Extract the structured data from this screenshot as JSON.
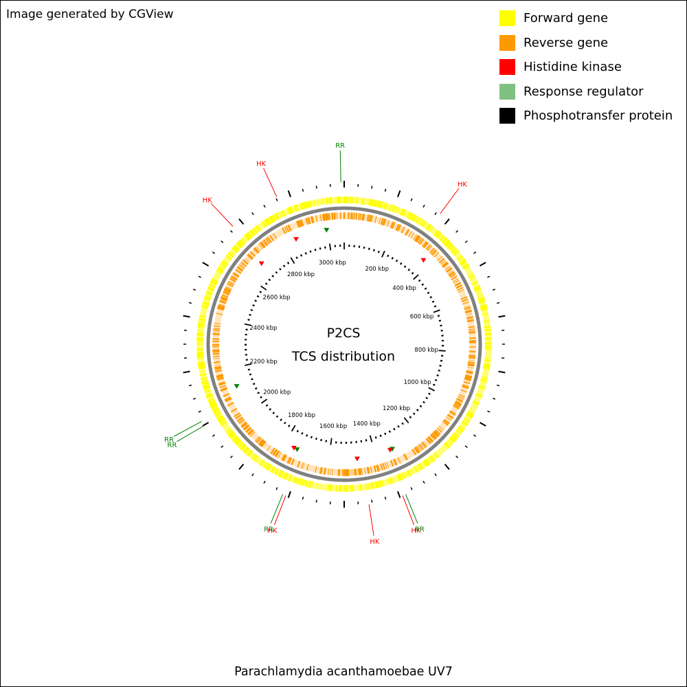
{
  "credit": "Image generated by CGView",
  "legend": [
    {
      "label": "Forward gene",
      "color": "#ffff00"
    },
    {
      "label": "Reverse gene",
      "color": "#ff9900"
    },
    {
      "label": "Histidine kinase",
      "color": "#ff0000"
    },
    {
      "label": "Response regulator",
      "color": "#80c080"
    },
    {
      "label": "Phosphotransfer protein",
      "color": "#000000"
    }
  ],
  "center": {
    "line1": "P2CS",
    "line2": "TCS distribution"
  },
  "organism": "Parachlamydia acanthamoebae UV7",
  "genome": {
    "length_kbp": 3070,
    "tick_labels": [
      "200 kbp",
      "400 kbp",
      "600 kbp",
      "800 kbp",
      "1000 kbp",
      "1200 kbp",
      "1400 kbp",
      "1600 kbp",
      "1800 kbp",
      "2000 kbp",
      "2200 kbp",
      "2400 kbp",
      "2600 kbp",
      "2800 kbp",
      "3000 kbp"
    ],
    "tick_positions_kbp": [
      200,
      400,
      600,
      800,
      1000,
      1200,
      1400,
      1600,
      1800,
      2000,
      2200,
      2400,
      2600,
      2800,
      3000
    ]
  },
  "colors": {
    "forward": "#ffff00",
    "reverse": "#ff9900",
    "hk": "#ff0000",
    "rr": "#008000",
    "backbone": "#808080",
    "tick": "#000000"
  },
  "features": [
    {
      "type": "RR",
      "label": "RR",
      "kbp": 3060
    },
    {
      "type": "HK",
      "label": "HK",
      "kbp": 310
    },
    {
      "type": "HK",
      "label": "HK",
      "kbp": 1460
    },
    {
      "type": "RR",
      "label": "RR",
      "kbp": 1345
    },
    {
      "type": "HK",
      "label": "HK",
      "kbp": 1355
    },
    {
      "type": "HK",
      "label": "HK",
      "kbp": 1715
    },
    {
      "type": "RR",
      "label": "RR",
      "kbp": 1725
    },
    {
      "type": "RR",
      "label": "RR",
      "kbp": 2045
    },
    {
      "type": "RR",
      "label": "RR",
      "kbp": 2060
    },
    {
      "type": "HK",
      "label": "HK",
      "kbp": 2700
    },
    {
      "type": "HK",
      "label": "HK",
      "kbp": 2860
    }
  ],
  "inner_markers": [
    {
      "type": "RR",
      "kbp": 2995
    },
    {
      "type": "HK",
      "kbp": 370
    },
    {
      "type": "RR",
      "kbp": 1325
    },
    {
      "type": "HK",
      "kbp": 1335
    },
    {
      "type": "HK",
      "kbp": 1480
    },
    {
      "type": "RR",
      "kbp": 1740
    },
    {
      "type": "HK",
      "kbp": 1755
    },
    {
      "type": "RR",
      "kbp": 2120
    },
    {
      "type": "HK",
      "kbp": 2680
    },
    {
      "type": "HK",
      "kbp": 2860
    }
  ]
}
